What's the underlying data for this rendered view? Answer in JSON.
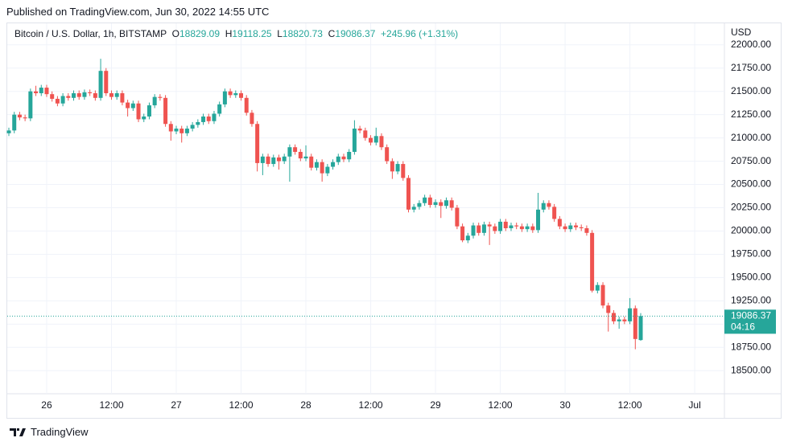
{
  "header": {
    "published": "Published on TradingView.com, Jun 30, 2022 14:55 UTC"
  },
  "footer": {
    "brand": "TradingView"
  },
  "chart_data": {
    "type": "candlestick",
    "title": "Bitcoin / U.S. Dollar, 1h, BITSTAMP",
    "ohlc_labels": {
      "open": "O",
      "high": "H",
      "low": "L",
      "close": "C"
    },
    "change": "+245.96 (+1.31%)",
    "currency": "USD",
    "countdown": "04:16",
    "up_color": "#26a69a",
    "down_color": "#ef5350",
    "grid": true,
    "xlim": [
      -0.3,
      132.5
    ],
    "ylim": [
      18252,
      22231
    ],
    "xticks": [
      {
        "value": 7,
        "label": "26"
      },
      {
        "value": 19,
        "label": "12:00"
      },
      {
        "value": 31,
        "label": "27"
      },
      {
        "value": 43,
        "label": "12:00"
      },
      {
        "value": 55,
        "label": "28"
      },
      {
        "value": 67,
        "label": "12:00"
      },
      {
        "value": 79,
        "label": "29"
      },
      {
        "value": 91,
        "label": "12:00"
      },
      {
        "value": 103,
        "label": "30"
      },
      {
        "value": 115,
        "label": "12:00"
      },
      {
        "value": 127,
        "label": "Jul"
      }
    ],
    "yticks": [
      {
        "value": 18500,
        "label": "18500.00"
      },
      {
        "value": 18750,
        "label": "18750.00"
      },
      {
        "value": 19000,
        "label": "19000.00"
      },
      {
        "value": 19250,
        "label": "19250.00"
      },
      {
        "value": 19500,
        "label": "19500.00"
      },
      {
        "value": 19750,
        "label": "19750.00"
      },
      {
        "value": 20000,
        "label": "20000.00"
      },
      {
        "value": 20250,
        "label": "20250.00"
      },
      {
        "value": 20500,
        "label": "20500.00"
      },
      {
        "value": 20750,
        "label": "20750.00"
      },
      {
        "value": 21000,
        "label": "21000.00"
      },
      {
        "value": 21250,
        "label": "21250.00"
      },
      {
        "value": 21500,
        "label": "21500.00"
      },
      {
        "value": 21750,
        "label": "21750.00"
      },
      {
        "value": 22000,
        "label": "22000.00"
      }
    ],
    "open": [
      21050,
      21080,
      21250,
      21220,
      21210,
      21500,
      21480,
      21540,
      21470,
      21420,
      21370,
      21450,
      21430,
      21480,
      21440,
      21490,
      21480,
      21430,
      21720,
      21480,
      21440,
      21480,
      21380,
      21320,
      21370,
      21200,
      21230,
      21350,
      21440,
      21430,
      21150,
      21070,
      21100,
      21050,
      21100,
      21140,
      21170,
      21230,
      21180,
      21260,
      21360,
      21500,
      21460,
      21480,
      21430,
      21270,
      21150,
      20730,
      20800,
      20720,
      20790,
      20750,
      20800,
      20900,
      20850,
      20780,
      20800,
      20680,
      20740,
      20620,
      20690,
      20740,
      20800,
      20770,
      20850,
      21100,
      21080,
      21000,
      20950,
      21020,
      20900,
      20750,
      20640,
      20720,
      20570,
      20230,
      20260,
      20300,
      20360,
      20280,
      20310,
      20270,
      20330,
      20250,
      20050,
      19900,
      19950,
      20060,
      19980,
      20070,
      20050,
      20000,
      20100,
      20030,
      20060,
      20050,
      20020,
      20050,
      20010,
      20230,
      20300,
      20260,
      20130,
      20050,
      20020,
      20060,
      20040,
      20030,
      19980,
      19360,
      19420,
      19200,
      19120,
      19030,
      19050,
      19030,
      19170,
      18829.09
    ],
    "high": [
      21110,
      21280,
      21280,
      21250,
      21530,
      21560,
      21570,
      21570,
      21500,
      21450,
      21480,
      21480,
      21510,
      21510,
      21520,
      21520,
      21510,
      21850,
      21750,
      21510,
      21510,
      21510,
      21410,
      21400,
      21400,
      21260,
      21380,
      21470,
      21470,
      21460,
      21180,
      21130,
      21130,
      21130,
      21170,
      21200,
      21260,
      21260,
      21290,
      21390,
      21530,
      21530,
      21510,
      21510,
      21460,
      21300,
      21180,
      20830,
      20830,
      20820,
      20820,
      20830,
      20930,
      20930,
      20880,
      20920,
      20830,
      20770,
      20770,
      20720,
      20770,
      20830,
      20830,
      20880,
      21190,
      21130,
      21110,
      21030,
      21110,
      21050,
      20930,
      20780,
      20750,
      20750,
      20600,
      20290,
      20330,
      20390,
      20390,
      20340,
      20340,
      20360,
      20360,
      20280,
      20080,
      19980,
      20090,
      20090,
      20100,
      20100,
      20080,
      20130,
      20130,
      20090,
      20090,
      20080,
      20080,
      20080,
      20410,
      20330,
      20330,
      20290,
      20160,
      20080,
      20090,
      20090,
      20070,
      20060,
      20010,
      19450,
      19450,
      19230,
      19150,
      19080,
      19080,
      19280,
      19200,
      19118.25
    ],
    "low": [
      21020,
      21050,
      21190,
      21180,
      21180,
      21450,
      21450,
      21440,
      21390,
      21340,
      21340,
      21400,
      21400,
      21410,
      21410,
      21450,
      21400,
      21400,
      21450,
      21410,
      21410,
      21350,
      21230,
      21290,
      21170,
      21170,
      21200,
      21320,
      21400,
      21120,
      20970,
      21040,
      20950,
      21020,
      21070,
      21110,
      21140,
      21150,
      21150,
      21230,
      21330,
      21430,
      21430,
      21400,
      21240,
      21120,
      20640,
      20600,
      20690,
      20690,
      20660,
      20720,
      20530,
      20820,
      20750,
      20750,
      20650,
      20650,
      20530,
      20590,
      20660,
      20710,
      20740,
      20740,
      20820,
      21050,
      20970,
      20920,
      20920,
      20870,
      20720,
      20560,
      20610,
      20540,
      20200,
      20200,
      20230,
      20270,
      20250,
      20250,
      20140,
      20240,
      20220,
      20020,
      19880,
      19870,
      19920,
      19950,
      19950,
      19850,
      19970,
      19970,
      20000,
      20000,
      20020,
      19990,
      19990,
      19980,
      19980,
      20200,
      20230,
      20100,
      20020,
      19990,
      19990,
      20010,
      20000,
      19950,
      19340,
      19330,
      19170,
      18920,
      19000,
      18950,
      19000,
      19000,
      18730,
      18820.73
    ],
    "close": [
      21080,
      21250,
      21220,
      21210,
      21500,
      21480,
      21540,
      21470,
      21420,
      21370,
      21450,
      21430,
      21480,
      21440,
      21490,
      21480,
      21430,
      21720,
      21480,
      21440,
      21480,
      21380,
      21320,
      21370,
      21200,
      21230,
      21350,
      21440,
      21430,
      21150,
      21070,
      21100,
      21050,
      21100,
      21140,
      21170,
      21230,
      21180,
      21260,
      21360,
      21500,
      21460,
      21480,
      21430,
      21270,
      21150,
      20730,
      20800,
      20720,
      20790,
      20750,
      20800,
      20900,
      20850,
      20780,
      20800,
      20680,
      20740,
      20620,
      20690,
      20740,
      20800,
      20770,
      20850,
      21100,
      21080,
      21000,
      20950,
      21020,
      20900,
      20750,
      20640,
      20720,
      20570,
      20230,
      20260,
      20300,
      20360,
      20280,
      20310,
      20270,
      20330,
      20250,
      20050,
      19900,
      19950,
      20060,
      19980,
      20070,
      20050,
      20000,
      20100,
      20030,
      20060,
      20050,
      20020,
      20050,
      20010,
      20230,
      20300,
      20260,
      20130,
      20050,
      20020,
      20060,
      20040,
      20030,
      19980,
      19360,
      19420,
      19200,
      19120,
      19030,
      19050,
      19030,
      19170,
      18840.41,
      19086.37
    ]
  }
}
